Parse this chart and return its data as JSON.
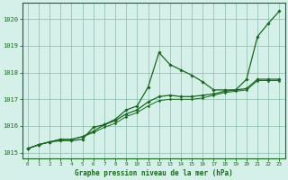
{
  "bg_color": "#d4f0e8",
  "grid_color": "#88bbaa",
  "line_color": "#1a6620",
  "xlabel": "Graphe pression niveau de la mer (hPa)",
  "ylim": [
    1014.8,
    1020.6
  ],
  "xlim": [
    -0.5,
    23.5
  ],
  "yticks": [
    1015,
    1016,
    1017,
    1018,
    1019,
    1020
  ],
  "xticks": [
    0,
    1,
    2,
    3,
    4,
    5,
    6,
    7,
    8,
    9,
    10,
    11,
    12,
    13,
    14,
    15,
    16,
    17,
    18,
    19,
    20,
    21,
    22,
    23
  ],
  "series": [
    [
      1015.15,
      1015.3,
      1015.4,
      1015.45,
      1015.45,
      1015.5,
      1015.95,
      1016.05,
      1016.25,
      1016.6,
      1016.75,
      1017.45,
      1018.75,
      1018.3,
      1018.1,
      1017.9,
      1017.65,
      1017.35,
      1017.35,
      1017.35,
      1017.75,
      1019.35,
      1019.85,
      1020.3
    ],
    [
      1015.15,
      1015.3,
      1015.4,
      1015.5,
      1015.5,
      1015.6,
      1015.8,
      1016.05,
      1016.2,
      1016.45,
      1016.6,
      1016.9,
      1017.1,
      1017.15,
      1017.1,
      1017.1,
      1017.15,
      1017.2,
      1017.3,
      1017.35,
      1017.4,
      1017.75,
      1017.75,
      1017.75
    ],
    [
      1015.15,
      1015.3,
      1015.4,
      1015.5,
      1015.5,
      1015.6,
      1015.75,
      1015.95,
      1016.1,
      1016.35,
      1016.5,
      1016.75,
      1016.95,
      1017.0,
      1017.0,
      1017.0,
      1017.05,
      1017.15,
      1017.25,
      1017.3,
      1017.35,
      1017.7,
      1017.7,
      1017.7
    ]
  ]
}
